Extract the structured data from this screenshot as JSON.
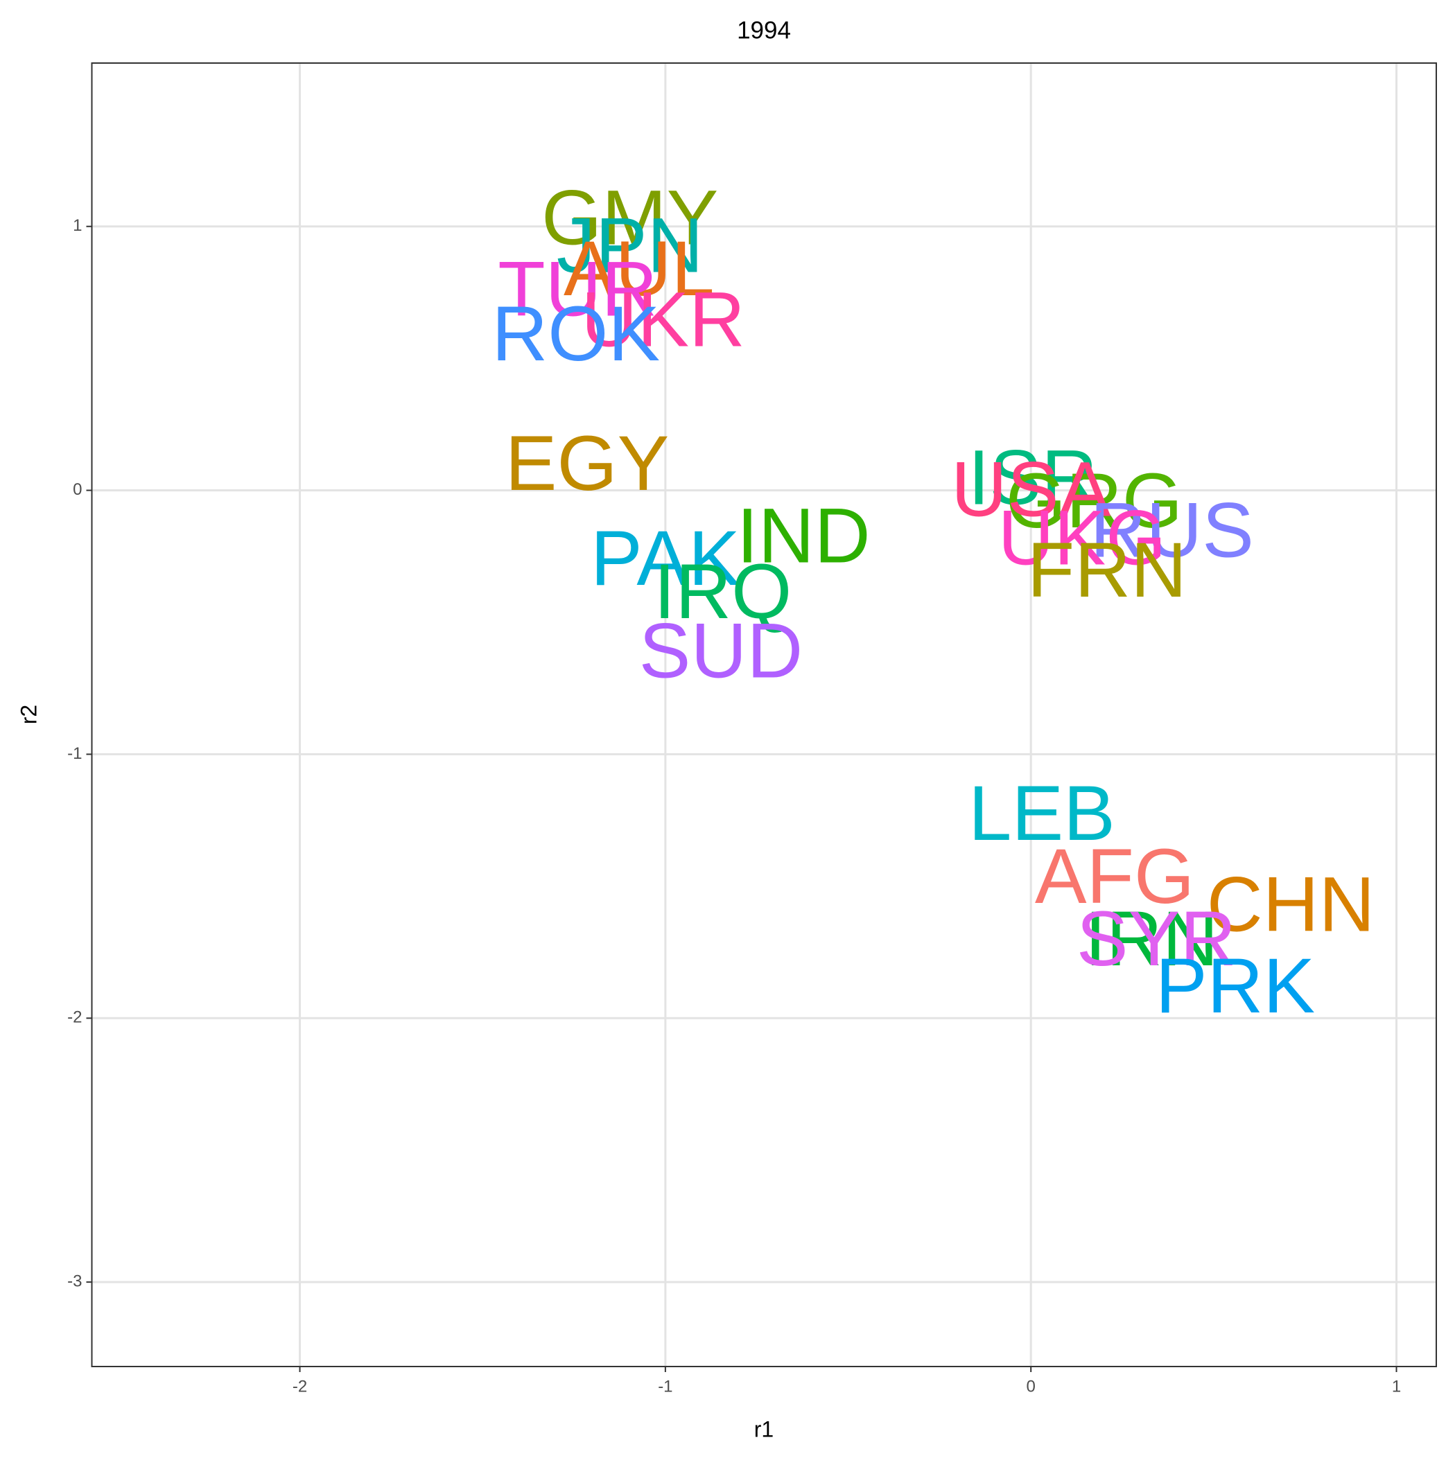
{
  "chart_data": {
    "type": "text-scatter",
    "title": "1994",
    "x_label": "r1",
    "y_label": "r2",
    "xlim": [
      -2.569,
      1.109
    ],
    "ylim": [
      -3.32,
      1.619
    ],
    "xticks": [
      -2,
      -1,
      0,
      1
    ],
    "yticks": [
      -3,
      -2,
      -1,
      0,
      1
    ],
    "grid": true,
    "points": [
      {
        "label": "GMY",
        "x": -1.097,
        "y": 1.033,
        "color": "#7F9F00"
      },
      {
        "label": "JPN",
        "x": -1.097,
        "y": 0.928,
        "color": "#00B0A8"
      },
      {
        "label": "AUL",
        "x": -1.072,
        "y": 0.84,
        "color": "#E8701A"
      },
      {
        "label": "TUR",
        "x": -1.24,
        "y": 0.763,
        "color": "#F040D8"
      },
      {
        "label": "UKR",
        "x": -1.006,
        "y": 0.647,
        "color": "#FF3FA0"
      },
      {
        "label": "ROK",
        "x": -1.245,
        "y": 0.594,
        "color": "#3F8FFF"
      },
      {
        "label": "EGY",
        "x": -1.214,
        "y": 0.102,
        "color": "#C08A00"
      },
      {
        "label": "PAK",
        "x": -1.0,
        "y": -0.257,
        "color": "#00AFD8"
      },
      {
        "label": "IND",
        "x": -0.622,
        "y": -0.172,
        "color": "#2DB000"
      },
      {
        "label": "IRQ",
        "x": -0.843,
        "y": -0.383,
        "color": "#00BA60"
      },
      {
        "label": "SUD",
        "x": -0.848,
        "y": -0.608,
        "color": "#B060FF"
      },
      {
        "label": "ISR",
        "x": 0.005,
        "y": 0.049,
        "color": "#00BB80"
      },
      {
        "label": "GRG",
        "x": 0.173,
        "y": -0.039,
        "color": "#53B400"
      },
      {
        "label": "USA",
        "x": 0.0,
        "y": 0.004,
        "color": "#FF4080"
      },
      {
        "label": "RUS",
        "x": 0.386,
        "y": -0.151,
        "color": "#8080FF"
      },
      {
        "label": "UKG",
        "x": 0.14,
        "y": -0.179,
        "color": "#FF40C0"
      },
      {
        "label": "FRN",
        "x": 0.208,
        "y": -0.302,
        "color": "#A89B00"
      },
      {
        "label": "LEB",
        "x": 0.03,
        "y": -1.223,
        "color": "#00B8C8"
      },
      {
        "label": "AFG",
        "x": 0.229,
        "y": -1.462,
        "color": "#F8766D"
      },
      {
        "label": "CHN",
        "x": 0.711,
        "y": -1.568,
        "color": "#D88000"
      },
      {
        "label": "IRN",
        "x": 0.33,
        "y": -1.698,
        "color": "#00B83C"
      },
      {
        "label": "SYR",
        "x": 0.343,
        "y": -1.698,
        "color": "#E060F0"
      },
      {
        "label": "PRK",
        "x": 0.559,
        "y": -1.877,
        "color": "#00A0F0"
      }
    ]
  }
}
